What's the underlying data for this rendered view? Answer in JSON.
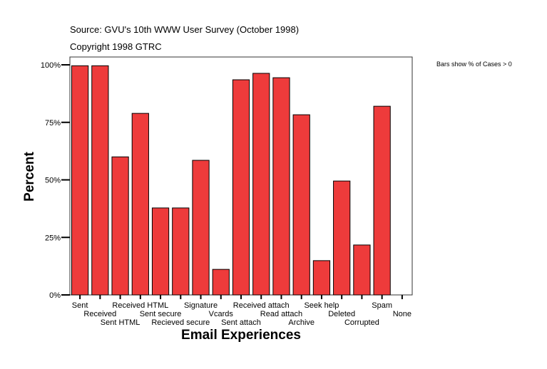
{
  "header": {
    "source": "Source: GVU's 10th WWW User Survey (October 1998)",
    "copyright": "Copyright 1998 GTRC"
  },
  "chart_data": {
    "type": "bar",
    "xlabel": "Email Experiences",
    "ylabel": "Percent",
    "annotation": "Bars show % of Cases > 0",
    "ylim": [
      0,
      100
    ],
    "yticks": [
      "0%",
      "25%",
      "50%",
      "75%",
      "100%"
    ],
    "grid": false,
    "bar_color": "#EE3B3B",
    "categories": [
      "Sent",
      "Received",
      "Sent HTML",
      "Received HTML",
      "Sent secure",
      "Recieved secure",
      "Signature",
      "Vcards",
      "Sent attach",
      "Received attach",
      "Read attach",
      "Archive",
      "Seek help",
      "Deleted",
      "Corrupted",
      "Spam",
      "None"
    ],
    "values": [
      99.6,
      99.6,
      60.0,
      78.9,
      37.8,
      37.8,
      58.5,
      11.1,
      93.5,
      96.3,
      94.4,
      78.3,
      14.9,
      49.5,
      21.7,
      82.0,
      0
    ]
  }
}
